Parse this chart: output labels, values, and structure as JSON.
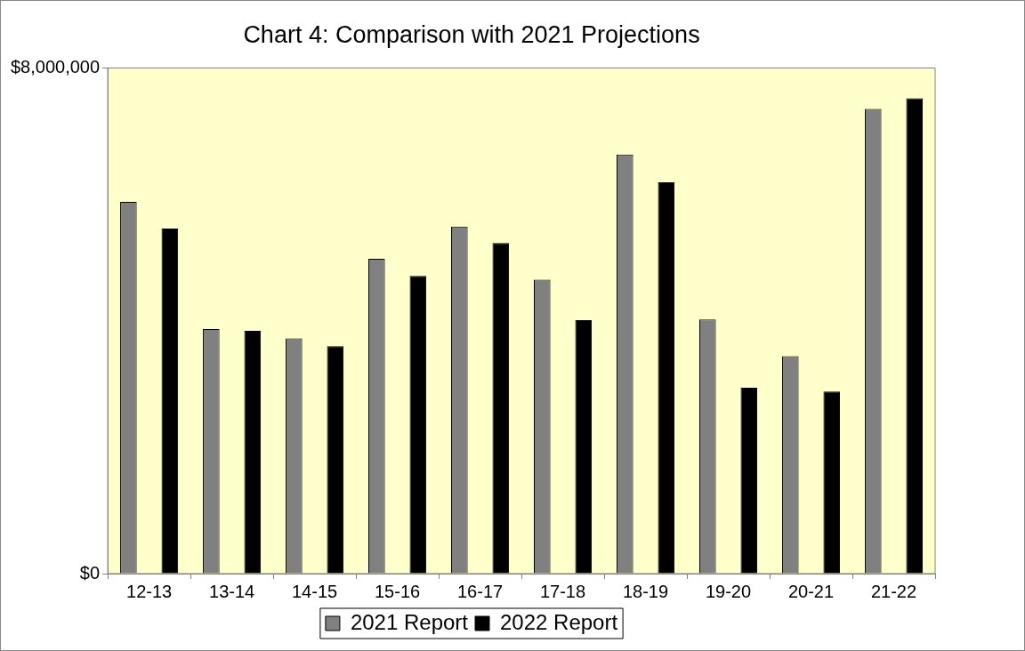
{
  "chart_data": {
    "type": "bar",
    "title": "Chart 4: Comparison with 2021 Projections",
    "categories": [
      "12-13",
      "13-14",
      "14-15",
      "15-16",
      "16-17",
      "17-18",
      "18-19",
      "19-20",
      "20-21",
      "21-22"
    ],
    "series": [
      {
        "name": "2021 Report",
        "color": "#808080",
        "values": [
          5880000,
          3870000,
          3720000,
          4980000,
          5490000,
          4650000,
          6630000,
          4020000,
          3440000,
          7350000
        ]
      },
      {
        "name": "2022 Report",
        "color": "#000000",
        "values": [
          5460000,
          3840000,
          3600000,
          4710000,
          5230000,
          4010000,
          6190000,
          2940000,
          2880000,
          7520000
        ]
      }
    ],
    "ylim": [
      0,
      8000000
    ],
    "yticks": [
      {
        "value": 0,
        "label": "$0"
      },
      {
        "value": 8000000,
        "label": "$8,000,000"
      }
    ],
    "grid": false,
    "legend": "bottom"
  }
}
